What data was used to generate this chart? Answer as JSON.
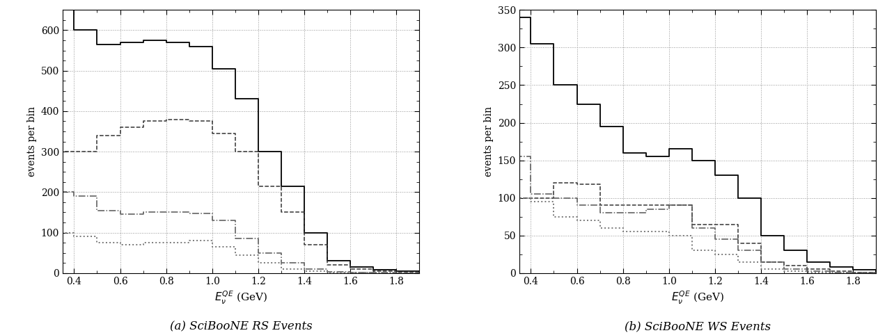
{
  "bin_edges": [
    0.35,
    0.4,
    0.5,
    0.6,
    0.7,
    0.8,
    0.9,
    1.0,
    1.1,
    1.2,
    1.3,
    1.4,
    1.5,
    1.6,
    1.7,
    1.8,
    1.9
  ],
  "rs_total": [
    650,
    600,
    565,
    570,
    575,
    570,
    560,
    505,
    430,
    300,
    215,
    100,
    30,
    15,
    8,
    4
  ],
  "rs_ccqe": [
    300,
    300,
    340,
    360,
    375,
    380,
    375,
    345,
    300,
    215,
    150,
    70,
    20,
    10,
    5,
    2
  ],
  "rs_cc1pi": [
    200,
    190,
    155,
    145,
    150,
    150,
    148,
    130,
    85,
    50,
    25,
    10,
    3,
    2,
    1,
    0
  ],
  "rs_other": [
    100,
    90,
    75,
    70,
    75,
    75,
    80,
    65,
    45,
    25,
    10,
    5,
    2,
    1,
    0,
    0
  ],
  "ws_total": [
    340,
    305,
    250,
    225,
    195,
    160,
    155,
    165,
    150,
    130,
    100,
    50,
    30,
    15,
    8,
    4
  ],
  "ws_ccqe": [
    100,
    100,
    120,
    118,
    90,
    90,
    90,
    90,
    65,
    65,
    40,
    15,
    10,
    5,
    3,
    1
  ],
  "ws_cc1pi": [
    155,
    105,
    100,
    90,
    80,
    80,
    85,
    90,
    60,
    45,
    30,
    15,
    5,
    3,
    1,
    1
  ],
  "ws_other": [
    100,
    95,
    75,
    70,
    60,
    55,
    55,
    50,
    30,
    25,
    15,
    5,
    3,
    1,
    0,
    0
  ],
  "xlabel": "E_{\\nu}^{QE} (GeV)",
  "ylabel": "events per bin",
  "rs_ylim": [
    0,
    650
  ],
  "ws_ylim": [
    0,
    350
  ],
  "rs_yticks": [
    0,
    100,
    200,
    300,
    400,
    500,
    600
  ],
  "ws_yticks": [
    0,
    50,
    100,
    150,
    200,
    250,
    300,
    350
  ],
  "xlim": [
    0.35,
    1.9
  ],
  "xticks": [
    0.4,
    0.6,
    0.8,
    1.0,
    1.2,
    1.4,
    1.6,
    1.8
  ],
  "caption_a": "(a) SciBooNE RS Events",
  "caption_b": "(b) SciBooNE WS Events",
  "color_total": "#111111",
  "color_ccqe": "#333333",
  "color_cc1pi": "#555555",
  "color_other": "#777777",
  "lw_total": 1.4,
  "lw_sub": 1.1
}
